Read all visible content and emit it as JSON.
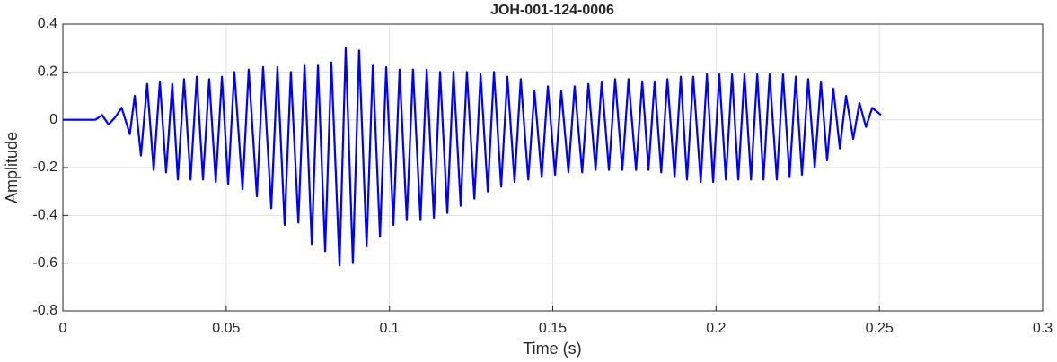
{
  "chart_data": {
    "type": "line",
    "title": "JOH-001-124-0006",
    "xlabel": "Time (s)",
    "ylabel": "Amplitude",
    "xlim": [
      0,
      0.3
    ],
    "ylim": [
      -0.8,
      0.4
    ],
    "xticks": [
      0,
      0.05,
      0.1,
      0.15,
      0.2,
      0.25,
      0.3
    ],
    "yticks": [
      -0.8,
      -0.6,
      -0.4,
      -0.2,
      0,
      0.2,
      0.4
    ],
    "grid": true,
    "series": [
      {
        "color": "#0000ff",
        "x": [
          0,
          0.01,
          0.012,
          0.014,
          0.016,
          0.018,
          0.0205,
          0.022,
          0.0239,
          0.0258,
          0.0278,
          0.0297,
          0.0316,
          0.0335,
          0.0352,
          0.0371,
          0.0391,
          0.041,
          0.0429,
          0.0448,
          0.0468,
          0.0487,
          0.0506,
          0.0525,
          0.055,
          0.0569,
          0.0594,
          0.0613,
          0.0638,
          0.0657,
          0.0679,
          0.0698,
          0.0721,
          0.074,
          0.0762,
          0.0781,
          0.0803,
          0.0822,
          0.0847,
          0.0866,
          0.0888,
          0.0907,
          0.093,
          0.0949,
          0.0971,
          0.099,
          0.1012,
          0.1031,
          0.1053,
          0.1072,
          0.1095,
          0.1114,
          0.1136,
          0.1155,
          0.1177,
          0.1196,
          0.1218,
          0.1237,
          0.126,
          0.1279,
          0.1301,
          0.132,
          0.1342,
          0.1361,
          0.1383,
          0.1402,
          0.1425,
          0.1444,
          0.1466,
          0.1485,
          0.1507,
          0.1526,
          0.1548,
          0.1567,
          0.159,
          0.1609,
          0.1631,
          0.165,
          0.1672,
          0.1691,
          0.1713,
          0.1732,
          0.1755,
          0.1774,
          0.1793,
          0.1812,
          0.1832,
          0.1851,
          0.1873,
          0.1892,
          0.1911,
          0.193,
          0.1953,
          0.1972,
          0.1991,
          0.201,
          0.203,
          0.2049,
          0.2068,
          0.2087,
          0.2107,
          0.2126,
          0.2145,
          0.2164,
          0.2186,
          0.2205,
          0.2225,
          0.2244,
          0.2263,
          0.2282,
          0.2302,
          0.2321,
          0.234,
          0.2359,
          0.2379,
          0.2398,
          0.242,
          0.2439,
          0.2459,
          0.2478,
          0.2505
        ],
        "values": [
          0,
          0,
          0.02,
          -0.02,
          0.01,
          0.05,
          -0.06,
          0.1,
          -0.15,
          0.15,
          -0.21,
          0.16,
          -0.22,
          0.15,
          -0.25,
          0.17,
          -0.25,
          0.18,
          -0.25,
          0.17,
          -0.26,
          0.18,
          -0.27,
          0.2,
          -0.29,
          0.21,
          -0.32,
          0.22,
          -0.37,
          0.22,
          -0.44,
          0.2,
          -0.43,
          0.23,
          -0.52,
          0.23,
          -0.55,
          0.24,
          -0.61,
          0.3,
          -0.6,
          0.29,
          -0.53,
          0.23,
          -0.49,
          0.22,
          -0.44,
          0.21,
          -0.42,
          0.21,
          -0.42,
          0.21,
          -0.41,
          0.2,
          -0.39,
          0.2,
          -0.36,
          0.2,
          -0.33,
          0.19,
          -0.3,
          0.2,
          -0.28,
          0.18,
          -0.26,
          0.17,
          -0.25,
          0.12,
          -0.24,
          0.14,
          -0.23,
          0.12,
          -0.22,
          0.14,
          -0.22,
          0.15,
          -0.21,
          0.16,
          -0.21,
          0.17,
          -0.21,
          0.17,
          -0.21,
          0.16,
          -0.21,
          0.16,
          -0.22,
          0.17,
          -0.24,
          0.18,
          -0.25,
          0.18,
          -0.26,
          0.19,
          -0.26,
          0.19,
          -0.25,
          0.19,
          -0.25,
          0.19,
          -0.25,
          0.19,
          -0.25,
          0.19,
          -0.25,
          0.19,
          -0.24,
          0.18,
          -0.23,
          0.17,
          -0.2,
          0.16,
          -0.17,
          0.13,
          -0.12,
          0.1,
          -0.08,
          0.07,
          -0.03,
          0.05,
          0.02
        ]
      }
    ]
  }
}
